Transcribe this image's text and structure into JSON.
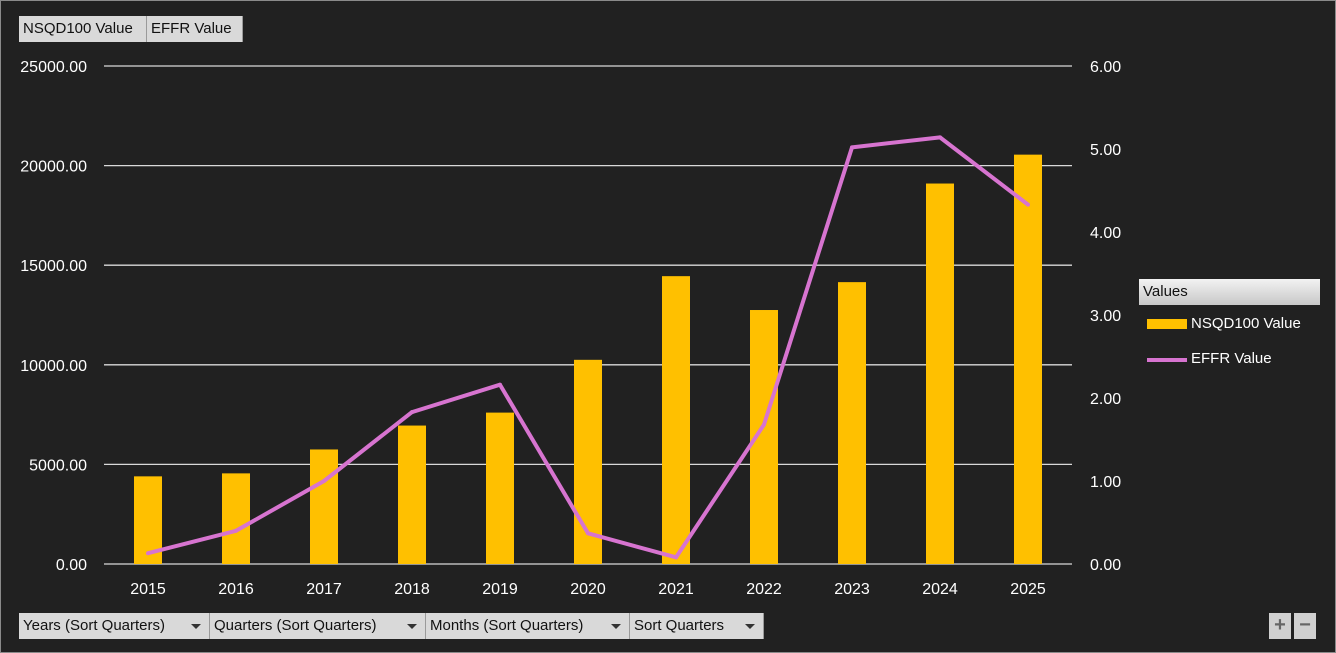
{
  "value_fields": [
    "NSQD100 Value",
    "EFFR Value"
  ],
  "axis_fields": [
    "Years (Sort Quarters)",
    "Quarters (Sort Quarters)",
    "Months (Sort Quarters)",
    "Sort Quarters"
  ],
  "legend": {
    "title": "Values",
    "items": [
      {
        "label": "NSQD100 Value",
        "color": "#FFC000"
      },
      {
        "label": "EFFR Value",
        "color": "#D774D0"
      }
    ]
  },
  "zoom": {
    "plus": "+",
    "minus": "−"
  },
  "chart_data": {
    "type": "bar",
    "categories": [
      "2015",
      "2016",
      "2017",
      "2018",
      "2019",
      "2020",
      "2021",
      "2022",
      "2023",
      "2024",
      "2025"
    ],
    "series": [
      {
        "name": "NSQD100 Value",
        "type": "bar",
        "axis": "left",
        "color": "#FFC000",
        "values": [
          4400,
          4550,
          5750,
          6950,
          7600,
          10250,
          14450,
          12750,
          14150,
          19100,
          20550
        ]
      },
      {
        "name": "EFFR Value",
        "type": "line",
        "axis": "right",
        "color": "#D774D0",
        "values": [
          0.13,
          0.4,
          1.0,
          1.83,
          2.16,
          0.37,
          0.08,
          1.68,
          5.02,
          5.14,
          4.33
        ]
      }
    ],
    "y_left": {
      "min": 0,
      "max": 25000,
      "ticks": [
        "0.00",
        "5000.00",
        "10000.00",
        "15000.00",
        "20000.00",
        "25000.00"
      ]
    },
    "y_right": {
      "min": 0,
      "max": 6,
      "ticks": [
        "0.00",
        "1.00",
        "2.00",
        "3.00",
        "4.00",
        "5.00",
        "6.00"
      ]
    },
    "grid": true,
    "legend_position": "right"
  }
}
